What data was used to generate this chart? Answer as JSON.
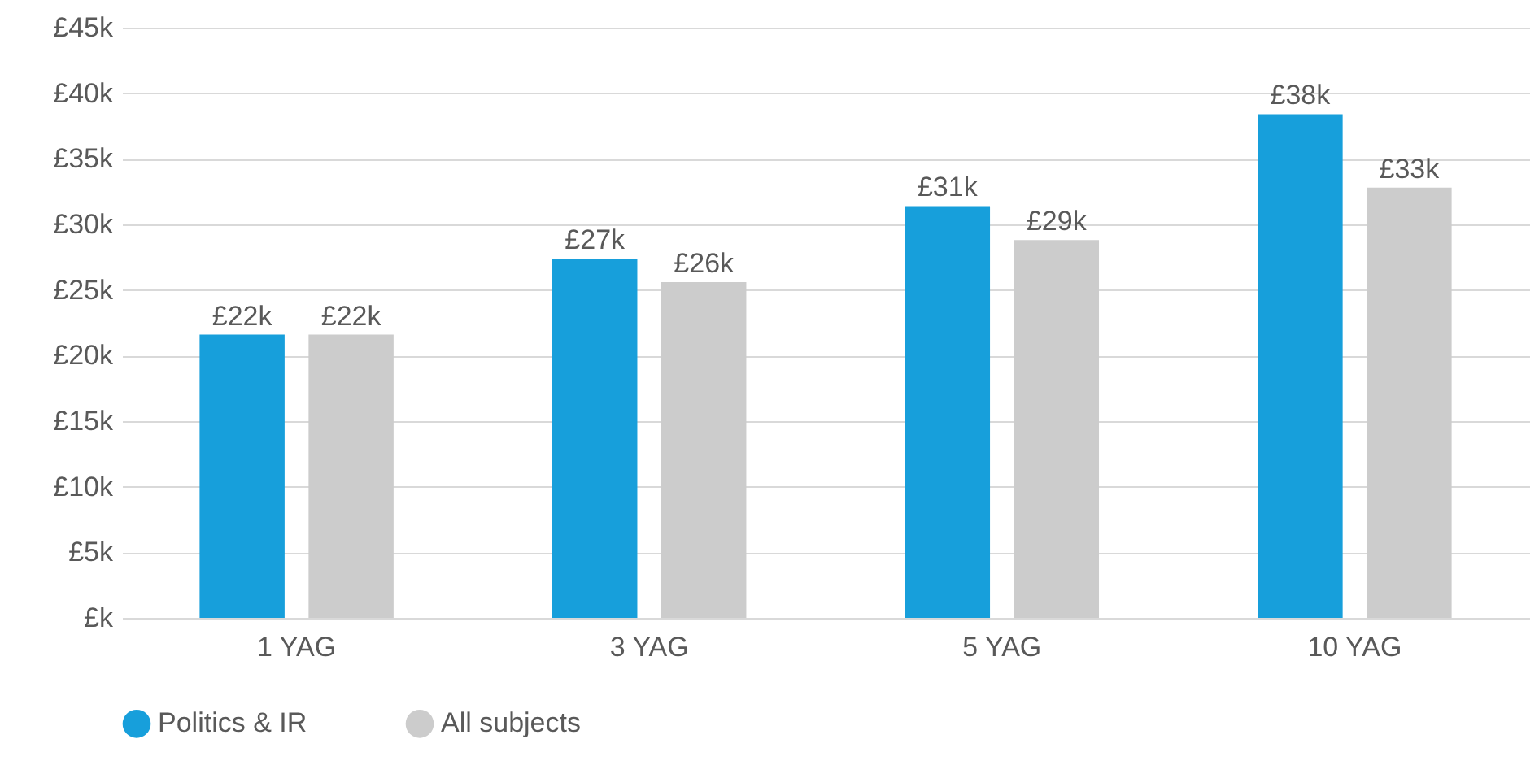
{
  "chart_data": {
    "type": "bar",
    "categories": [
      "1 YAG",
      "3 YAG",
      "5 YAG",
      "10 YAG"
    ],
    "series": [
      {
        "name": "Politics & IR",
        "color": "#179fdb",
        "values": [
          21.6,
          27.4,
          31.4,
          38.4
        ],
        "value_labels": [
          "£22k",
          "£27k",
          "£31k",
          "£38k"
        ]
      },
      {
        "name": "All subjects",
        "color": "#cccccc",
        "values": [
          21.6,
          25.6,
          28.8,
          32.8
        ],
        "value_labels": [
          "£22k",
          "£26k",
          "£29k",
          "£33k"
        ]
      }
    ],
    "ylim": [
      0,
      45
    ],
    "yticks": [
      {
        "value": 0,
        "label": "£k"
      },
      {
        "value": 5,
        "label": "£5k"
      },
      {
        "value": 10,
        "label": "£10k"
      },
      {
        "value": 15,
        "label": "£15k"
      },
      {
        "value": 20,
        "label": "£20k"
      },
      {
        "value": 25,
        "label": "£25k"
      },
      {
        "value": 30,
        "label": "£30k"
      },
      {
        "value": 35,
        "label": "£35k"
      },
      {
        "value": 40,
        "label": "£40k"
      },
      {
        "value": 45,
        "label": "£45k"
      }
    ],
    "grid": "y",
    "legend": "bottom"
  }
}
